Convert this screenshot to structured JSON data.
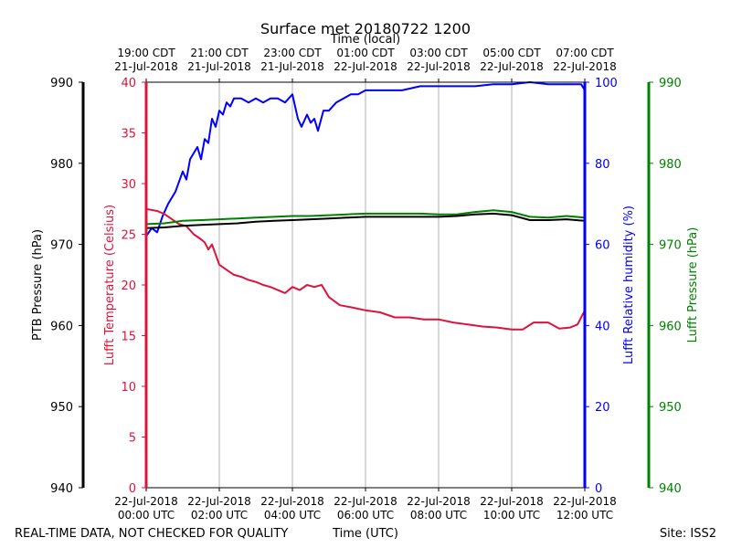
{
  "chart_data": {
    "type": "line",
    "title": "Surface met 20180722 1200",
    "top_axis_label": "Time (local)",
    "bottom_axis_label": "Time (UTC)",
    "footer_left": "REAL-TIME DATA, NOT CHECKED FOR QUALITY",
    "footer_right": "Site: ISS2",
    "x_range_hours": [
      0,
      12
    ],
    "x_ticks": [
      {
        "hour": 0,
        "utc": [
          "22-Jul-2018",
          "00:00 UTC"
        ],
        "local": [
          "19:00 CDT",
          "21-Jul-2018"
        ]
      },
      {
        "hour": 2,
        "utc": [
          "22-Jul-2018",
          "02:00 UTC"
        ],
        "local": [
          "21:00 CDT",
          "21-Jul-2018"
        ]
      },
      {
        "hour": 4,
        "utc": [
          "22-Jul-2018",
          "04:00 UTC"
        ],
        "local": [
          "23:00 CDT",
          "21-Jul-2018"
        ]
      },
      {
        "hour": 6,
        "utc": [
          "22-Jul-2018",
          "06:00 UTC"
        ],
        "local": [
          "01:00 CDT",
          "22-Jul-2018"
        ]
      },
      {
        "hour": 8,
        "utc": [
          "22-Jul-2018",
          "08:00 UTC"
        ],
        "local": [
          "03:00 CDT",
          "22-Jul-2018"
        ]
      },
      {
        "hour": 10,
        "utc": [
          "22-Jul-2018",
          "10:00 UTC"
        ],
        "local": [
          "05:00 CDT",
          "22-Jul-2018"
        ]
      },
      {
        "hour": 12,
        "utc": [
          "22-Jul-2018",
          "12:00 UTC"
        ],
        "local": [
          "07:00 CDT",
          "22-Jul-2018"
        ]
      }
    ],
    "axes": {
      "ptb_pressure": {
        "label": "PTB Pressure (hPa)",
        "range": [
          940,
          990
        ],
        "ticks": [
          940,
          950,
          960,
          970,
          980,
          990
        ],
        "color": "#000000"
      },
      "temperature": {
        "label": "Lufft Temperature (Celsius)",
        "range": [
          0,
          40
        ],
        "ticks": [
          0,
          5,
          10,
          15,
          20,
          25,
          30,
          35,
          40
        ],
        "color": "#dc143c"
      },
      "humidity": {
        "label": "Lufft Relative humidity (%)",
        "range": [
          0,
          100
        ],
        "ticks": [
          0,
          20,
          40,
          60,
          80,
          100
        ],
        "color": "#0000ff"
      },
      "lufft_pressure": {
        "label": "Lufft Pressure (hPa)",
        "range": [
          940,
          990
        ],
        "ticks": [
          940,
          950,
          960,
          970,
          980,
          990
        ],
        "color": "#008000"
      }
    },
    "series": [
      {
        "name": "Lufft Relative humidity (%)",
        "axis": "humidity",
        "color": "#0000ff",
        "x": [
          0,
          0.15,
          0.3,
          0.45,
          0.6,
          0.8,
          1.0,
          1.1,
          1.2,
          1.4,
          1.5,
          1.6,
          1.7,
          1.8,
          1.9,
          2.0,
          2.1,
          2.2,
          2.3,
          2.4,
          2.6,
          2.8,
          3.0,
          3.2,
          3.4,
          3.6,
          3.8,
          4.0,
          4.05,
          4.15,
          4.25,
          4.4,
          4.5,
          4.6,
          4.7,
          4.85,
          5.0,
          5.2,
          5.4,
          5.6,
          5.8,
          6.0,
          6.5,
          7.0,
          7.5,
          8.0,
          8.5,
          9.0,
          9.5,
          10.0,
          10.5,
          11.0,
          11.5,
          11.9,
          12.0
        ],
        "y": [
          62,
          64,
          63,
          67,
          70,
          73,
          78,
          76,
          81,
          84,
          81,
          86,
          85,
          91,
          89,
          93,
          92,
          95,
          94,
          96,
          96,
          95,
          96,
          95,
          96,
          96,
          95,
          97,
          95,
          91,
          89,
          92,
          90,
          91,
          88,
          93,
          93,
          95,
          96,
          97,
          97,
          98,
          98,
          98,
          99,
          99,
          99,
          99,
          99.5,
          99.5,
          100,
          99.5,
          99.5,
          99.5,
          98
        ]
      },
      {
        "name": "Lufft Temperature (Celsius)",
        "axis": "temperature",
        "color": "#dc143c",
        "x": [
          0,
          0.3,
          0.5,
          0.7,
          0.9,
          1.1,
          1.3,
          1.5,
          1.6,
          1.7,
          1.8,
          1.9,
          2.0,
          2.2,
          2.4,
          2.6,
          2.8,
          3.0,
          3.2,
          3.4,
          3.6,
          3.8,
          4.0,
          4.2,
          4.4,
          4.6,
          4.8,
          5.0,
          5.3,
          5.6,
          6.0,
          6.4,
          6.8,
          7.2,
          7.6,
          8.0,
          8.4,
          8.8,
          9.2,
          9.6,
          10.0,
          10.3,
          10.6,
          11.0,
          11.3,
          11.6,
          11.8,
          12.0
        ],
        "y": [
          27.5,
          27.3,
          27.0,
          26.5,
          26.0,
          25.8,
          25.0,
          24.5,
          24.2,
          23.5,
          24.0,
          23.0,
          22.0,
          21.5,
          21.0,
          20.8,
          20.5,
          20.3,
          20.0,
          19.8,
          19.5,
          19.2,
          19.8,
          19.5,
          20.0,
          19.8,
          20.0,
          18.8,
          18.0,
          17.8,
          17.5,
          17.3,
          16.8,
          16.8,
          16.6,
          16.6,
          16.3,
          16.1,
          15.9,
          15.8,
          15.6,
          15.6,
          16.3,
          16.3,
          15.7,
          15.8,
          16.1,
          17.5
        ]
      },
      {
        "name": "Lufft Pressure (hPa)",
        "axis": "lufft_pressure",
        "color": "#008000",
        "x": [
          0,
          0.5,
          1.0,
          1.5,
          2.0,
          2.5,
          3.0,
          3.5,
          4.0,
          4.5,
          5.0,
          5.5,
          6.0,
          6.5,
          7.0,
          7.5,
          8.0,
          8.5,
          9.0,
          9.5,
          10.0,
          10.5,
          11.0,
          11.5,
          12.0
        ],
        "y": [
          972.5,
          972.6,
          972.9,
          973.0,
          973.1,
          973.2,
          973.3,
          973.4,
          973.5,
          973.5,
          973.6,
          973.7,
          973.8,
          973.8,
          973.8,
          973.8,
          973.7,
          973.7,
          974.0,
          974.2,
          974.0,
          973.4,
          973.3,
          973.5,
          973.3
        ]
      },
      {
        "name": "PTB Pressure (hPa)",
        "axis": "ptb_pressure",
        "color": "#000000",
        "x": [
          0,
          0.5,
          1.0,
          1.5,
          2.0,
          2.5,
          3.0,
          3.5,
          4.0,
          4.5,
          5.0,
          5.5,
          6.0,
          6.5,
          7.0,
          7.5,
          8.0,
          8.5,
          9.0,
          9.5,
          10.0,
          10.5,
          11.0,
          11.5,
          12.0
        ],
        "y": [
          972.0,
          972.1,
          972.3,
          972.4,
          972.5,
          972.6,
          972.8,
          972.9,
          973.0,
          973.1,
          973.2,
          973.3,
          973.4,
          973.4,
          973.4,
          973.4,
          973.4,
          973.5,
          973.7,
          973.8,
          973.6,
          973.0,
          973.0,
          973.1,
          972.9
        ]
      }
    ]
  }
}
